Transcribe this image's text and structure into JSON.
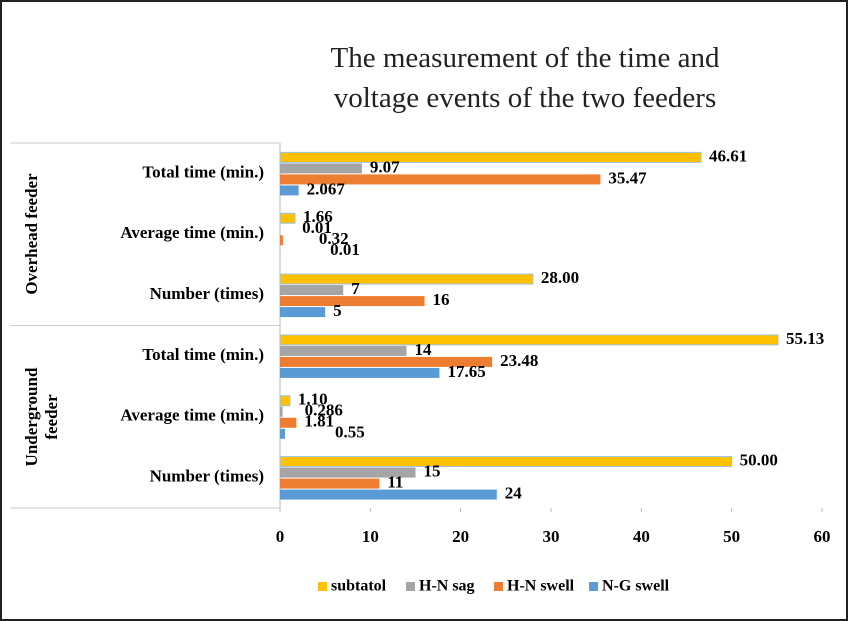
{
  "chart_data": {
    "type": "bar",
    "orientation": "horizontal",
    "title": "The measurement of the time and voltage events of the two feeders",
    "groups": [
      {
        "name": "Overhead feeder",
        "categories": [
          "Total time (min.)",
          "Average time (min.)",
          "Number (times)"
        ]
      },
      {
        "name": "Underground feeder",
        "categories": [
          "Total time (min.)",
          "Average time (min.)",
          "Number (times)"
        ]
      }
    ],
    "series": [
      {
        "name": "subtatol",
        "color": "#ffc000",
        "values": [
          46.61,
          1.66,
          28,
          55.13,
          1.1,
          50
        ],
        "value_labels": [
          "46.61",
          "1.66",
          "28.00",
          "55.13",
          "1.10",
          "50.00"
        ]
      },
      {
        "name": "H-N sag",
        "color": "#a5a5a5",
        "values": [
          9.07,
          0.01,
          7,
          14,
          0.286,
          15
        ],
        "value_labels": [
          "9.07",
          "0.01",
          "7",
          "14",
          "0.286",
          "15"
        ]
      },
      {
        "name": "H-N swell",
        "color": "#ed7d31",
        "values": [
          35.47,
          0.32,
          16,
          23.48,
          1.81,
          11
        ],
        "value_labels": [
          "35.47",
          "0.32",
          "16",
          "23.48",
          "1.81",
          "11"
        ]
      },
      {
        "name": "N-G swell",
        "color": "#5b9bd5",
        "values": [
          2.067,
          0.01,
          5,
          17.65,
          0.55,
          24
        ],
        "value_labels": [
          "2.067",
          "0.01",
          "5",
          "17.65",
          "0.55",
          "24"
        ]
      }
    ],
    "xlim": [
      0,
      60
    ],
    "xticks": [
      0,
      10,
      20,
      30,
      40,
      50,
      60
    ],
    "legend": "bottom"
  }
}
